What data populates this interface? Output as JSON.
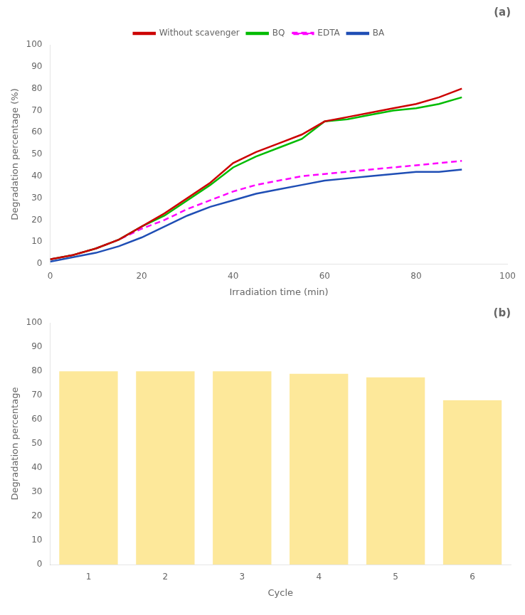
{
  "chart_data": [
    {
      "type": "line",
      "xlabel": "Irradiation time (min)",
      "ylabel": "Degradation percentage (%)",
      "annotation": "(a)",
      "x": [
        0,
        5,
        10,
        15,
        20,
        25,
        30,
        35,
        40,
        45,
        50,
        55,
        60,
        65,
        70,
        75,
        80,
        85,
        90
      ],
      "series": [
        {
          "name": "Without scavenger",
          "color": "#cc0000",
          "line_style": "solid",
          "values": [
            2,
            4,
            7,
            11,
            17,
            23,
            30,
            37,
            46,
            51,
            55,
            59,
            65,
            67,
            69,
            71,
            73,
            76,
            80
          ]
        },
        {
          "name": "BQ",
          "color": "#00bb00",
          "line_style": "solid",
          "values": [
            2,
            4,
            7,
            11,
            17,
            22,
            29,
            36,
            44,
            49,
            53,
            57,
            65,
            66,
            68,
            70,
            71,
            73,
            76
          ]
        },
        {
          "name": "EDTA",
          "color": "#ff00ff",
          "line_style": "dashed",
          "values": [
            2,
            4,
            7,
            11,
            16,
            20,
            25,
            29,
            33,
            36,
            38,
            40,
            41,
            42,
            43,
            44,
            45,
            46,
            47
          ]
        },
        {
          "name": "BA",
          "color": "#1f4eb5",
          "line_style": "solid",
          "values": [
            1,
            3,
            5,
            8,
            12,
            17,
            22,
            26,
            29,
            32,
            34,
            36,
            38,
            39,
            40,
            41,
            42,
            42,
            43
          ]
        }
      ],
      "xlim": [
        0,
        100
      ],
      "ylim": [
        0,
        100
      ],
      "xticks": [
        0,
        20,
        40,
        60,
        80,
        100
      ],
      "yticks": [
        0,
        10,
        20,
        30,
        40,
        50,
        60,
        70,
        80,
        90,
        100
      ],
      "grid": false,
      "legend": "top"
    },
    {
      "type": "bar",
      "xlabel": "Cycle",
      "ylabel": "Degradation percentage",
      "annotation": "(b)",
      "categories": [
        "1",
        "2",
        "3",
        "4",
        "5",
        "6"
      ],
      "values": [
        80.5,
        80.5,
        80.5,
        79.5,
        78.0,
        68.5
      ],
      "color": "#fde89a",
      "ylim": [
        0,
        100
      ],
      "yticks": [
        0,
        10,
        20,
        30,
        40,
        50,
        60,
        70,
        80,
        90,
        100
      ],
      "grid": false
    }
  ]
}
